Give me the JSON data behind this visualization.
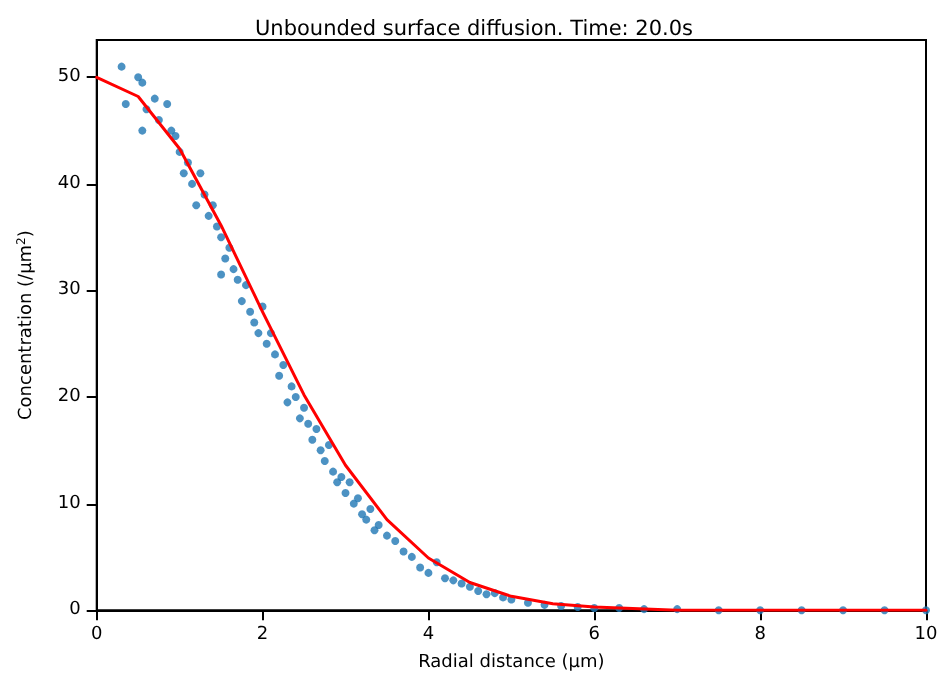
{
  "chart_data": {
    "type": "scatter",
    "title": "Unbounded surface diffusion. Time: 20.0s",
    "xlabel": "Radial distance (μm)",
    "ylabel": "Concentration (/μm$^{2}$)",
    "xlim": [
      0,
      10
    ],
    "xticks": [
      0,
      2,
      4,
      6,
      8,
      10
    ],
    "ylim": [
      0,
      53.5
    ],
    "yticks": [
      0,
      10,
      20,
      30,
      40,
      50
    ],
    "grid": false,
    "series": [
      {
        "color": "#1f77b4",
        "marker": "circle",
        "x": [
          0.3,
          0.35,
          0.5,
          0.55,
          0.6,
          0.55,
          0.7,
          0.75,
          0.85,
          0.9,
          0.95,
          1.0,
          1.05,
          1.1,
          1.15,
          1.2,
          1.25,
          1.3,
          1.35,
          1.4,
          1.45,
          1.5,
          1.55,
          1.5,
          1.6,
          1.65,
          1.7,
          1.75,
          1.8,
          1.85,
          1.9,
          1.95,
          2.0,
          2.05,
          2.1,
          2.15,
          2.2,
          2.25,
          2.3,
          2.35,
          2.4,
          2.45,
          2.5,
          2.55,
          2.6,
          2.65,
          2.7,
          2.75,
          2.8,
          2.85,
          2.9,
          2.95,
          3.0,
          3.05,
          3.1,
          3.15,
          3.2,
          3.25,
          3.3,
          3.35,
          3.4,
          3.5,
          3.6,
          3.7,
          3.8,
          3.9,
          4.0,
          4.1,
          4.2,
          4.3,
          4.4,
          4.5,
          4.6,
          4.7,
          4.8,
          4.9,
          5.0,
          5.2,
          5.4,
          5.6,
          5.8,
          6.0,
          6.3,
          6.6,
          7.0,
          7.5,
          8.0,
          8.5,
          9.0,
          9.5,
          10
        ],
        "values": [
          51,
          47.5,
          50,
          49.5,
          47,
          45,
          48,
          46,
          47.5,
          45,
          44.5,
          43,
          41,
          42,
          40,
          38,
          41,
          39,
          37,
          38,
          36,
          35,
          33,
          31.5,
          34,
          32,
          31,
          29,
          30.5,
          28,
          27,
          26,
          28.5,
          25,
          26,
          24,
          22,
          23,
          19.5,
          21,
          20,
          18,
          19,
          17.5,
          16,
          17,
          15,
          14,
          15.5,
          13,
          12,
          12.5,
          11,
          12,
          10,
          10.5,
          9,
          8.5,
          9.5,
          7.5,
          8,
          7,
          6.5,
          5.5,
          5,
          4,
          3.5,
          4.5,
          3,
          2.8,
          2.5,
          2.2,
          1.8,
          1.5,
          1.6,
          1.2,
          1.0,
          0.7,
          0.5,
          0.4,
          0.3,
          0.2,
          0.2,
          0.1,
          0.1,
          0,
          0,
          0,
          0,
          0,
          0
        ]
      },
      {
        "type": "line",
        "color": "#ff0000",
        "marker": "none",
        "line_style": "solid",
        "x": [
          0,
          0.5,
          1,
          1.5,
          2,
          2.5,
          3,
          3.5,
          4,
          4.5,
          5,
          5.5,
          6,
          7,
          8,
          9,
          10
        ],
        "values": [
          50,
          48.2,
          43.3,
          36.1,
          28.0,
          20.2,
          13.6,
          8.5,
          4.9,
          2.6,
          1.3,
          0.6,
          0.3,
          0,
          0,
          0,
          0
        ]
      }
    ]
  }
}
